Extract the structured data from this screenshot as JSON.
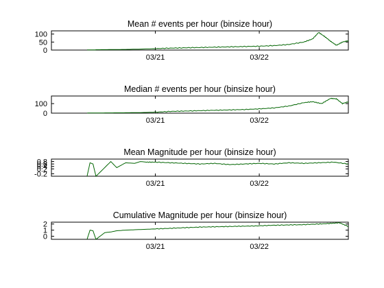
{
  "chart_data": [
    {
      "type": "line",
      "title": "Mean # events per hour (binsize  hour)",
      "ylim": [
        0,
        120
      ],
      "yticks": [
        0,
        50,
        100
      ],
      "ytick_labels": [
        "0",
        "50",
        "100"
      ],
      "xlim": [
        0,
        1
      ],
      "xticks": [
        0.35,
        0.7
      ],
      "xtick_labels": [
        "03/21",
        "03/22"
      ],
      "color": "#006400",
      "series": [
        {
          "x": [
            0.12,
            0.15,
            0.15,
            0.2,
            0.25,
            0.3,
            0.35,
            0.4,
            0.45,
            0.5,
            0.55,
            0.6,
            0.65,
            0.7,
            0.75,
            0.8,
            0.85,
            0.88,
            0.9,
            0.92,
            0.94,
            0.96,
            0.98,
            1.0
          ],
          "y": [
            1,
            1,
            2,
            3,
            4,
            6,
            9,
            12,
            14,
            16,
            18,
            20,
            22,
            24,
            28,
            35,
            50,
            70,
            110,
            85,
            55,
            30,
            50,
            58
          ]
        }
      ]
    },
    {
      "type": "line",
      "title": "Median # events per hour (binsize  hour)",
      "ylim": [
        0,
        180
      ],
      "yticks": [
        0,
        100
      ],
      "ytick_labels": [
        "0",
        "100"
      ],
      "xlim": [
        0,
        1
      ],
      "xticks": [
        0.35,
        0.7
      ],
      "xtick_labels": [
        "03/21",
        "03/22"
      ],
      "color": "#006400",
      "series": [
        {
          "x": [
            0.12,
            0.15,
            0.2,
            0.25,
            0.3,
            0.35,
            0.4,
            0.45,
            0.5,
            0.55,
            0.6,
            0.65,
            0.7,
            0.75,
            0.8,
            0.85,
            0.88,
            0.91,
            0.94,
            0.96,
            0.98,
            1.0
          ],
          "y": [
            1,
            2,
            3,
            4,
            6,
            10,
            18,
            22,
            26,
            30,
            34,
            38,
            45,
            55,
            75,
            110,
            120,
            100,
            155,
            150,
            100,
            120
          ]
        }
      ]
    },
    {
      "type": "line",
      "title": "Mean Magnitude per hour (binsize  hour)",
      "ylim": [
        -0.4,
        1.0
      ],
      "yticks": [
        -0.2,
        0.2,
        0.4,
        0.6,
        0.8
      ],
      "ytick_labels": [
        "-0.2",
        "0.2",
        "0.4",
        "0.6",
        "0.8"
      ],
      "xlim": [
        0,
        1
      ],
      "xticks": [
        0.35,
        0.7
      ],
      "xtick_labels": [
        "03/21",
        "03/22"
      ],
      "color": "#006400",
      "series": [
        {
          "x": [
            0.12,
            0.13,
            0.14,
            0.15,
            0.2,
            0.22,
            0.25,
            0.28,
            0.3,
            0.32,
            0.35,
            0.4,
            0.45,
            0.5,
            0.55,
            0.6,
            0.65,
            0.7,
            0.75,
            0.8,
            0.85,
            0.9,
            0.95,
            1.0
          ],
          "y": [
            -0.4,
            0.7,
            0.6,
            -0.4,
            0.8,
            0.3,
            0.7,
            0.65,
            0.8,
            0.75,
            0.75,
            0.7,
            0.65,
            0.6,
            0.65,
            0.55,
            0.6,
            0.65,
            0.6,
            0.7,
            0.65,
            0.7,
            0.75,
            0.6
          ]
        }
      ]
    },
    {
      "type": "line",
      "title": "Cumulative Magnitude per hour (binsize  hour)",
      "ylim": [
        -0.5,
        2.3
      ],
      "yticks": [
        0,
        1,
        2
      ],
      "ytick_labels": [
        "0",
        "1",
        "2"
      ],
      "xlim": [
        0,
        1
      ],
      "xticks": [
        0.35,
        0.7
      ],
      "xtick_labels": [
        "03/21",
        "03/22"
      ],
      "color": "#006400",
      "series": [
        {
          "x": [
            0.12,
            0.13,
            0.14,
            0.15,
            0.18,
            0.2,
            0.22,
            0.25,
            0.3,
            0.35,
            0.4,
            0.45,
            0.5,
            0.55,
            0.6,
            0.65,
            0.7,
            0.75,
            0.8,
            0.85,
            0.9,
            0.94,
            0.97,
            1.0
          ],
          "y": [
            -0.5,
            1.0,
            0.9,
            -0.5,
            0.6,
            0.7,
            0.9,
            1.0,
            1.1,
            1.2,
            1.3,
            1.4,
            1.5,
            1.55,
            1.6,
            1.65,
            1.7,
            1.8,
            1.85,
            1.9,
            2.0,
            2.1,
            2.2,
            1.6
          ]
        }
      ]
    }
  ]
}
